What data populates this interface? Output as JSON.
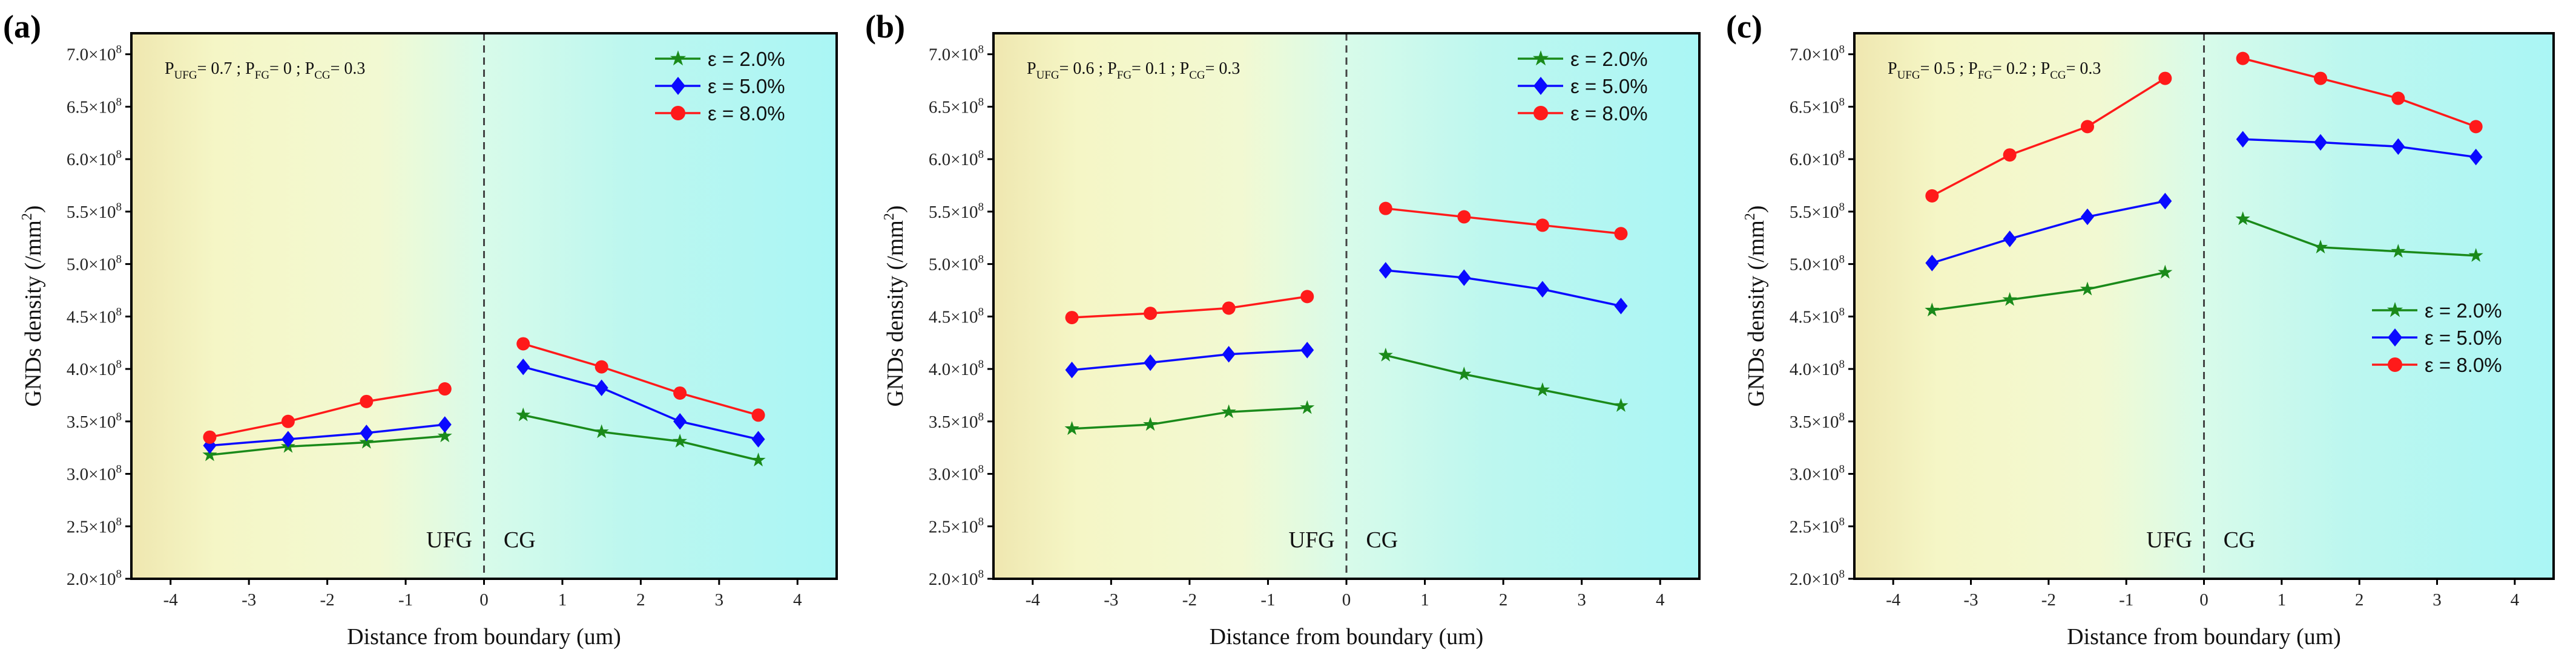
{
  "chart_data": [
    {
      "type": "line",
      "panel_label": "(a)",
      "annotation": {
        "parts": [
          [
            "P",
            "UFG",
            "= 0.7 ; "
          ],
          [
            "P",
            "FG",
            "= 0 ; "
          ],
          [
            "P",
            "CG",
            "= 0.3"
          ]
        ]
      },
      "xlabel": "Distance from boundary (um)",
      "ylabel": "GNDs density (/mm²)",
      "ylabel_base": "GNDs density (/mm",
      "ylabel_sup": "2",
      "ylabel_end": ")",
      "xlim": [
        -4.5,
        4.5
      ],
      "ylim": [
        2.0,
        7.2
      ],
      "xticks": [
        -4,
        -3,
        -2,
        -1,
        0,
        1,
        2,
        3,
        4
      ],
      "yticks": [
        2.0,
        2.5,
        3.0,
        3.5,
        4.0,
        4.5,
        5.0,
        5.5,
        6.0,
        6.5,
        7.0
      ],
      "ytick_exponent": "8",
      "region_labels": [
        "UFG",
        "CG"
      ],
      "boundary_x": 0,
      "legend_position": "top-right",
      "x": [
        -3.5,
        -2.5,
        -1.5,
        -0.5,
        0.5,
        1.5,
        2.5,
        3.5
      ],
      "series": [
        {
          "name": "ε = 2.0%",
          "marker": "star",
          "color": "#1a8a1a",
          "values": [
            3.18,
            3.26,
            3.3,
            3.36,
            3.56,
            3.4,
            3.31,
            3.13
          ]
        },
        {
          "name": "ε = 5.0%",
          "marker": "diamond",
          "color": "#0a0aff",
          "values": [
            3.27,
            3.33,
            3.39,
            3.47,
            4.02,
            3.82,
            3.5,
            3.33
          ]
        },
        {
          "name": "ε = 8.0%",
          "marker": "circle",
          "color": "#ff1a1a",
          "values": [
            3.35,
            3.5,
            3.69,
            3.81,
            4.24,
            4.02,
            3.77,
            3.56
          ]
        }
      ]
    },
    {
      "type": "line",
      "panel_label": "(b)",
      "annotation": {
        "parts": [
          [
            "P",
            "UFG",
            "= 0.6 ; "
          ],
          [
            "P",
            "FG",
            "= 0.1 ; "
          ],
          [
            "P",
            "CG",
            "= 0.3"
          ]
        ]
      },
      "xlabel": "Distance from boundary (um)",
      "ylabel": "GNDs density (/mm²)",
      "ylabel_base": "GNDs density (/mm",
      "ylabel_sup": "2",
      "ylabel_end": ")",
      "xlim": [
        -4.5,
        4.5
      ],
      "ylim": [
        2.0,
        7.2
      ],
      "xticks": [
        -4,
        -3,
        -2,
        -1,
        0,
        1,
        2,
        3,
        4
      ],
      "yticks": [
        2.0,
        2.5,
        3.0,
        3.5,
        4.0,
        4.5,
        5.0,
        5.5,
        6.0,
        6.5,
        7.0
      ],
      "ytick_exponent": "8",
      "region_labels": [
        "UFG",
        "CG"
      ],
      "boundary_x": 0,
      "legend_position": "top-right",
      "x": [
        -3.5,
        -2.5,
        -1.5,
        -0.5,
        0.5,
        1.5,
        2.5,
        3.5
      ],
      "series": [
        {
          "name": "ε = 2.0%",
          "marker": "star",
          "color": "#1a8a1a",
          "values": [
            3.43,
            3.47,
            3.59,
            3.63,
            4.13,
            3.95,
            3.8,
            3.65
          ]
        },
        {
          "name": "ε = 5.0%",
          "marker": "diamond",
          "color": "#0a0aff",
          "values": [
            3.99,
            4.06,
            4.14,
            4.18,
            4.94,
            4.87,
            4.76,
            4.6
          ]
        },
        {
          "name": "ε = 8.0%",
          "marker": "circle",
          "color": "#ff1a1a",
          "values": [
            4.49,
            4.53,
            4.58,
            4.69,
            5.53,
            5.45,
            5.37,
            5.29
          ]
        }
      ]
    },
    {
      "type": "line",
      "panel_label": "(c)",
      "annotation": {
        "parts": [
          [
            "P",
            "UFG",
            "= 0.5 ; "
          ],
          [
            "P",
            "FG",
            "= 0.2 ; "
          ],
          [
            "P",
            "CG",
            "= 0.3"
          ]
        ]
      },
      "xlabel": "Distance from boundary (um)",
      "ylabel": "GNDs density (/mm²)",
      "ylabel_base": "GNDs density (/mm",
      "ylabel_sup": "2",
      "ylabel_end": ")",
      "xlim": [
        -4.5,
        4.5
      ],
      "ylim": [
        2.0,
        7.2
      ],
      "xticks": [
        -4,
        -3,
        -2,
        -1,
        0,
        1,
        2,
        3,
        4
      ],
      "yticks": [
        2.0,
        2.5,
        3.0,
        3.5,
        4.0,
        4.5,
        5.0,
        5.5,
        6.0,
        6.5,
        7.0
      ],
      "ytick_exponent": "8",
      "region_labels": [
        "UFG",
        "CG"
      ],
      "boundary_x": 0,
      "legend_position": "center-right",
      "x": [
        -3.5,
        -2.5,
        -1.5,
        -0.5,
        0.5,
        1.5,
        2.5,
        3.5
      ],
      "series": [
        {
          "name": "ε = 2.0%",
          "marker": "star",
          "color": "#1a8a1a",
          "values": [
            4.56,
            4.66,
            4.76,
            4.92,
            5.43,
            5.16,
            5.12,
            5.08
          ]
        },
        {
          "name": "ε = 5.0%",
          "marker": "diamond",
          "color": "#0a0aff",
          "values": [
            5.01,
            5.24,
            5.45,
            5.6,
            6.19,
            6.16,
            6.12,
            6.02
          ]
        },
        {
          "name": "ε = 8.0%",
          "marker": "circle",
          "color": "#ff1a1a",
          "values": [
            5.65,
            6.04,
            6.31,
            6.77,
            6.96,
            6.77,
            6.58,
            6.31
          ]
        }
      ]
    }
  ]
}
